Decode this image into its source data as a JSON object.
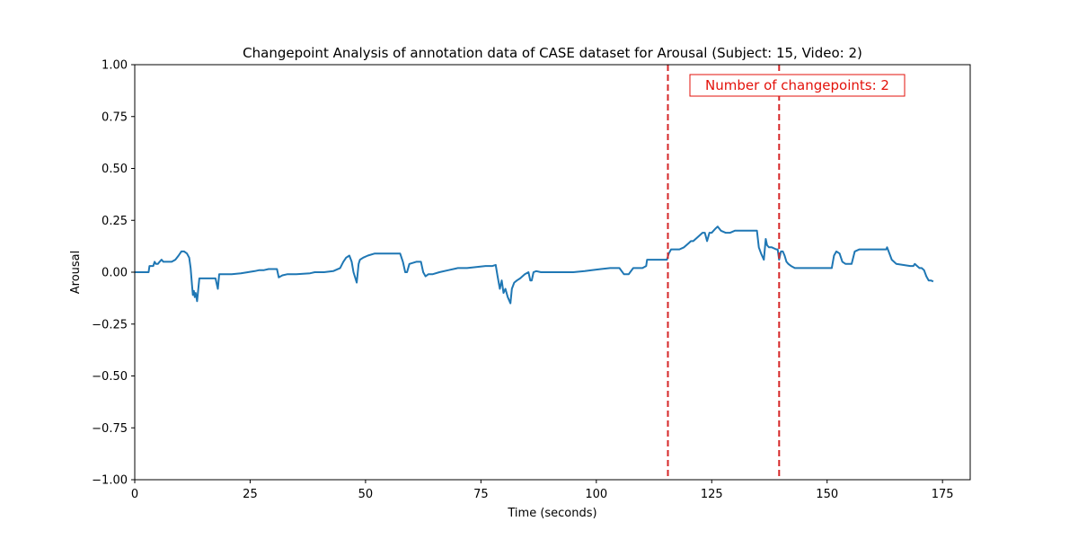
{
  "chart_data": {
    "type": "line",
    "title": "Changepoint Analysis of annotation data of CASE dataset for Arousal (Subject: 15, Video: 2)",
    "xlabel": "Time (seconds)",
    "ylabel": "Arousal",
    "xlim": [
      0,
      181
    ],
    "ylim": [
      -1.0,
      1.0
    ],
    "xticks": [
      0,
      25,
      50,
      75,
      100,
      125,
      150,
      175
    ],
    "xtick_labels": [
      "0",
      "25",
      "50",
      "75",
      "100",
      "125",
      "150",
      "175"
    ],
    "yticks": [
      -1.0,
      -0.75,
      -0.5,
      -0.25,
      0.0,
      0.25,
      0.5,
      0.75,
      1.0
    ],
    "ytick_labels": [
      "−1.00",
      "−0.75",
      "−0.50",
      "−0.25",
      "0.00",
      "0.25",
      "0.50",
      "0.75",
      "1.00"
    ],
    "grid": false,
    "series": [
      {
        "color": "#1f77b4",
        "x": [
          0,
          3,
          3.2,
          4,
          4.3,
          4.6,
          5,
          5.4,
          5.8,
          6.2,
          6.5,
          8,
          8.8,
          9.5,
          10.1,
          10.7,
          11.3,
          11.8,
          12.1,
          12.4,
          12.6,
          12.8,
          13.0,
          13.2,
          13.5,
          14,
          16,
          17.5,
          18,
          18.3,
          18.8,
          19.3,
          21,
          23,
          24.5,
          26,
          27,
          28,
          29,
          30,
          30.8,
          31.2,
          32,
          33,
          35,
          38,
          39,
          41,
          43,
          44.5,
          45.2,
          45.8,
          46.5,
          47,
          47.4,
          48.1,
          48.5,
          48.8,
          49.5,
          50.5,
          52,
          55,
          57,
          57.5,
          58.1,
          58.6,
          59,
          59.5,
          61,
          62,
          62.5,
          63,
          63.6,
          64.5,
          66,
          68,
          70,
          72,
          74,
          76,
          77.5,
          78.2,
          78.6,
          79.1,
          79.5,
          79.9,
          80.3,
          80.8,
          81.4,
          81.7,
          82.2,
          82.8,
          83.5,
          84.5,
          85.3,
          85.7,
          86,
          86.4,
          87,
          88,
          90,
          95,
          97.5,
          99,
          101,
          103,
          104.5,
          105,
          106,
          107,
          108,
          109,
          110,
          110.8,
          111,
          112,
          113,
          114,
          115,
          115.3,
          115.7,
          116.2,
          117,
          118,
          119,
          120,
          120.5,
          121,
          122,
          123,
          123.5,
          124,
          124.5,
          125,
          125.8,
          126.3,
          127,
          128,
          129,
          130,
          131,
          132,
          133,
          134,
          134.8,
          135.2,
          135.7,
          136.3,
          136.7,
          137,
          137.4,
          138,
          139,
          139.3,
          139.6,
          140,
          140.4,
          140.8,
          141.2,
          141.6,
          142.2,
          143,
          145,
          148,
          150,
          150.5,
          151,
          151.5,
          152,
          152.7,
          153.3,
          154,
          154.5,
          155.3,
          156,
          157,
          158,
          160,
          161,
          162,
          162.3,
          162.6,
          162.8,
          163,
          164,
          165,
          168,
          168.3,
          168.7,
          169,
          169.5,
          170,
          170.5,
          171,
          171.5,
          172,
          172.5,
          173
        ],
        "y": [
          0.0,
          0.0,
          0.03,
          0.03,
          0.05,
          0.04,
          0.04,
          0.05,
          0.06,
          0.05,
          0.05,
          0.05,
          0.06,
          0.08,
          0.1,
          0.1,
          0.09,
          0.07,
          0.02,
          -0.06,
          -0.11,
          -0.09,
          -0.12,
          -0.1,
          -0.14,
          -0.03,
          -0.03,
          -0.03,
          -0.08,
          -0.01,
          -0.01,
          -0.01,
          -0.01,
          -0.005,
          0.0,
          0.005,
          0.01,
          0.01,
          0.015,
          0.015,
          0.015,
          -0.025,
          -0.015,
          -0.01,
          -0.01,
          -0.005,
          0.0,
          0.0,
          0.005,
          0.02,
          0.05,
          0.07,
          0.08,
          0.05,
          0.0,
          -0.05,
          0.04,
          0.06,
          0.07,
          0.08,
          0.09,
          0.09,
          0.09,
          0.09,
          0.05,
          0.0,
          0.0,
          0.04,
          0.05,
          0.05,
          0.0,
          -0.02,
          -0.01,
          -0.01,
          0.0,
          0.01,
          0.02,
          0.02,
          0.025,
          0.03,
          0.03,
          0.035,
          -0.02,
          -0.08,
          -0.04,
          -0.1,
          -0.08,
          -0.12,
          -0.15,
          -0.08,
          -0.05,
          -0.04,
          -0.03,
          -0.01,
          0.0,
          -0.04,
          -0.04,
          0.0,
          0.005,
          0.0,
          0.0,
          0.0,
          0.005,
          0.01,
          0.015,
          0.02,
          0.02,
          0.02,
          -0.01,
          -0.01,
          0.02,
          0.02,
          0.02,
          0.03,
          0.06,
          0.06,
          0.06,
          0.06,
          0.06,
          0.06,
          0.09,
          0.11,
          0.11,
          0.11,
          0.12,
          0.14,
          0.15,
          0.15,
          0.17,
          0.19,
          0.19,
          0.15,
          0.19,
          0.19,
          0.21,
          0.22,
          0.2,
          0.19,
          0.19,
          0.2,
          0.2,
          0.2,
          0.2,
          0.2,
          0.2,
          0.12,
          0.09,
          0.06,
          0.16,
          0.13,
          0.12,
          0.12,
          0.11,
          0.11,
          0.06,
          0.1,
          0.1,
          0.08,
          0.05,
          0.04,
          0.03,
          0.02,
          0.02,
          0.02,
          0.02,
          0.02,
          0.02,
          0.08,
          0.1,
          0.09,
          0.05,
          0.04,
          0.04,
          0.04,
          0.1,
          0.11,
          0.11,
          0.11,
          0.11,
          0.11,
          0.11,
          0.11,
          0.11,
          0.12,
          0.06,
          0.04,
          0.03,
          0.03,
          0.03,
          0.04,
          0.03,
          0.02,
          0.02,
          0.01,
          -0.02,
          -0.04,
          -0.04,
          -0.045
        ]
      }
    ],
    "changepoints": [
      115.5,
      139.6
    ],
    "changepoint_color": "#d62728",
    "annotation": {
      "text": "Number of changepoints: 2",
      "color": "#e3120b",
      "placement": "top-right"
    }
  }
}
